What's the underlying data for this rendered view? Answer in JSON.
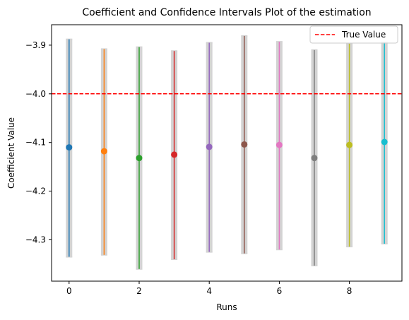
{
  "chart_data": {
    "type": "scatter",
    "title": "Coefficient and Confidence Intervals Plot of the estimation",
    "xlabel": "Runs",
    "ylabel": "Coefficient Value",
    "xlim": [
      -0.5,
      9.5
    ],
    "ylim": [
      -4.385,
      -3.858
    ],
    "x_ticks": [
      0,
      2,
      4,
      6,
      8
    ],
    "x_tick_labels": [
      "0",
      "2",
      "4",
      "6",
      "8"
    ],
    "y_ticks": [
      -3.9,
      -4.0,
      -4.1,
      -4.2,
      -4.3
    ],
    "y_tick_labels": [
      "−3.9",
      "−4.0",
      "−4.1",
      "−4.2",
      "−4.3"
    ],
    "grid": false,
    "reference_line": {
      "value": -4.0,
      "label": "True Value",
      "color": "#ff0000",
      "style": "dashed"
    },
    "legend": {
      "placement": "top-right",
      "entries": [
        "True Value"
      ]
    },
    "errorbar_color": "#d3d3d3",
    "points": [
      {
        "x": 0,
        "y": -4.11,
        "lower": -4.335,
        "upper": -3.888,
        "color": "#1f77b4"
      },
      {
        "x": 1,
        "y": -4.118,
        "lower": -4.331,
        "upper": -3.908,
        "color": "#ff7f0e"
      },
      {
        "x": 2,
        "y": -4.132,
        "lower": -4.36,
        "upper": -3.904,
        "color": "#2ca02c"
      },
      {
        "x": 3,
        "y": -4.125,
        "lower": -4.34,
        "upper": -3.912,
        "color": "#d62728"
      },
      {
        "x": 4,
        "y": -4.109,
        "lower": -4.325,
        "upper": -3.895,
        "color": "#9467bd"
      },
      {
        "x": 5,
        "y": -4.104,
        "lower": -4.328,
        "upper": -3.881,
        "color": "#8c564b"
      },
      {
        "x": 6,
        "y": -4.105,
        "lower": -4.32,
        "upper": -3.893,
        "color": "#e377c2"
      },
      {
        "x": 7,
        "y": -4.132,
        "lower": -4.353,
        "upper": -3.91,
        "color": "#7f7f7f"
      },
      {
        "x": 8,
        "y": -4.105,
        "lower": -4.314,
        "upper": -3.897,
        "color": "#bcbd22"
      },
      {
        "x": 9,
        "y": -4.099,
        "lower": -4.308,
        "upper": -3.894,
        "color": "#17becf"
      }
    ]
  }
}
